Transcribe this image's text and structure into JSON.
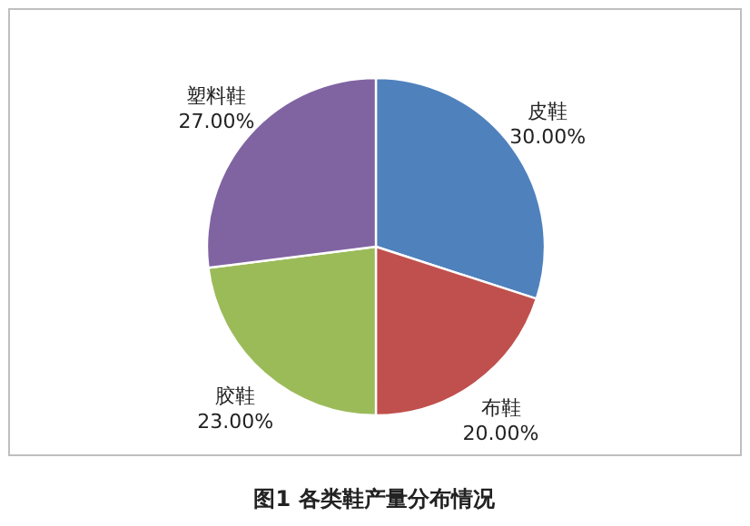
{
  "chart_data": {
    "type": "pie",
    "title": "图1  各类鞋产量分布情况",
    "categories": [
      "皮鞋",
      "布鞋",
      "胶鞋",
      "塑料鞋"
    ],
    "values": [
      30,
      20,
      23,
      27
    ],
    "colors": [
      "#4f81bd",
      "#c0504d",
      "#9bbb59",
      "#8064a2"
    ],
    "value_labels": [
      "30.00%",
      "20.00%",
      "23.00%",
      "27.00%"
    ]
  }
}
